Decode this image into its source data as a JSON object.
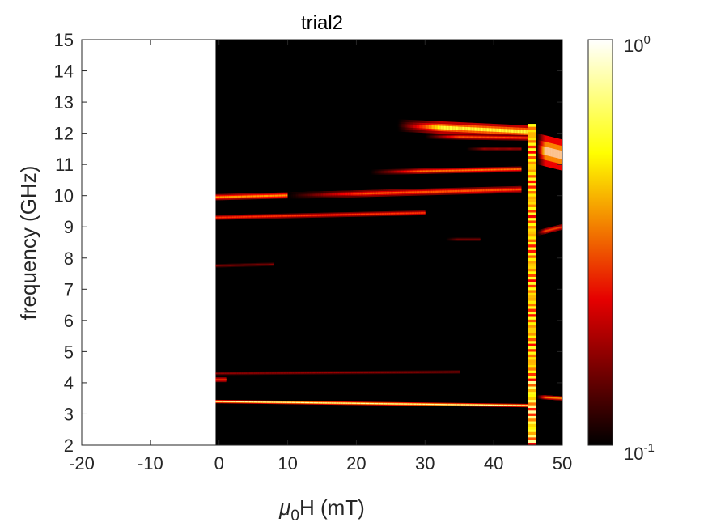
{
  "chart_data": {
    "type": "heatmap",
    "title": "trial2",
    "xlabel_symbol": "μ",
    "xlabel_subscript": "0",
    "xlabel_rest": "H (mT)",
    "ylabel": "frequency (GHz)",
    "xlim": [
      -20,
      50
    ],
    "ylim": [
      2,
      15
    ],
    "x_ticks": [
      -20,
      -10,
      0,
      10,
      20,
      30,
      40,
      50
    ],
    "x_tick_labels": [
      "-20",
      "-10",
      "0",
      "10",
      "20",
      "30",
      "40",
      "50"
    ],
    "y_ticks": [
      2,
      3,
      4,
      5,
      6,
      7,
      8,
      9,
      10,
      11,
      12,
      13,
      14,
      15
    ],
    "y_tick_labels": [
      "2",
      "3",
      "4",
      "5",
      "6",
      "7",
      "8",
      "9",
      "10",
      "11",
      "12",
      "13",
      "14",
      "15"
    ],
    "data_x_range": [
      -0.5,
      50
    ],
    "colormap": "hot",
    "color_scale": "log",
    "clim": [
      0.1,
      1
    ],
    "colorbar_labels": [
      {
        "base": "10",
        "exp": "0"
      },
      {
        "base": "10",
        "exp": "-1"
      }
    ],
    "background_value_color": "#000000",
    "modes": [
      {
        "x_start": -0.5,
        "x_end": 45,
        "f_start": 3.4,
        "f_end": 3.27,
        "peak": 0.9,
        "width_ghz": 0.05
      },
      {
        "x_start": -0.5,
        "x_end": 1,
        "f_start": 4.1,
        "f_end": 4.1,
        "peak": 0.55,
        "width_ghz": 0.07
      },
      {
        "x_start": -0.5,
        "x_end": 35,
        "f_start": 4.3,
        "f_end": 4.35,
        "peak": 0.22,
        "width_ghz": 0.05
      },
      {
        "x_start": -0.5,
        "x_end": 8,
        "f_start": 7.75,
        "f_end": 7.8,
        "peak": 0.2,
        "width_ghz": 0.05
      },
      {
        "x_start": -0.5,
        "x_end": 30,
        "f_start": 9.3,
        "f_end": 9.45,
        "peak": 0.45,
        "width_ghz": 0.07
      },
      {
        "x_start": -0.5,
        "x_end": 44,
        "f_start": 9.95,
        "f_end": 10.2,
        "peak": 0.6,
        "width_ghz": 0.09
      },
      {
        "x_start": 10,
        "x_end": 44,
        "f_start": 10.0,
        "f_end": 10.2,
        "peak": 0.5,
        "width_ghz": 0.1
      },
      {
        "x_start": 22,
        "x_end": 44,
        "f_start": 10.75,
        "f_end": 10.85,
        "peak": 0.55,
        "width_ghz": 0.08
      },
      {
        "x_start": 26,
        "x_end": 45,
        "f_start": 12.25,
        "f_end": 12.05,
        "peak": 0.8,
        "width_ghz": 0.18
      },
      {
        "x_start": 30,
        "x_end": 45,
        "f_start": 11.9,
        "f_end": 11.85,
        "peak": 0.5,
        "width_ghz": 0.08
      },
      {
        "x_start": 36,
        "x_end": 44,
        "f_start": 11.5,
        "f_end": 11.5,
        "peak": 0.25,
        "width_ghz": 0.06
      },
      {
        "x_start": 33,
        "x_end": 38,
        "f_start": 8.6,
        "f_end": 8.6,
        "peak": 0.2,
        "width_ghz": 0.05
      },
      {
        "x_start": 46.3,
        "x_end": 50,
        "f_start": 11.5,
        "f_end": 11.3,
        "peak": 1.0,
        "width_ghz": 0.45
      },
      {
        "x_start": 46.3,
        "x_end": 50,
        "f_start": 8.8,
        "f_end": 9.0,
        "peak": 0.55,
        "width_ghz": 0.08
      },
      {
        "x_start": 46.3,
        "x_end": 50,
        "f_start": 3.55,
        "f_end": 3.5,
        "peak": 0.7,
        "width_ghz": 0.06
      }
    ],
    "vertical_stripe": {
      "x_center": 45.6,
      "x_width": 1.1,
      "f_min": 2,
      "f_max": 12.3
    }
  }
}
